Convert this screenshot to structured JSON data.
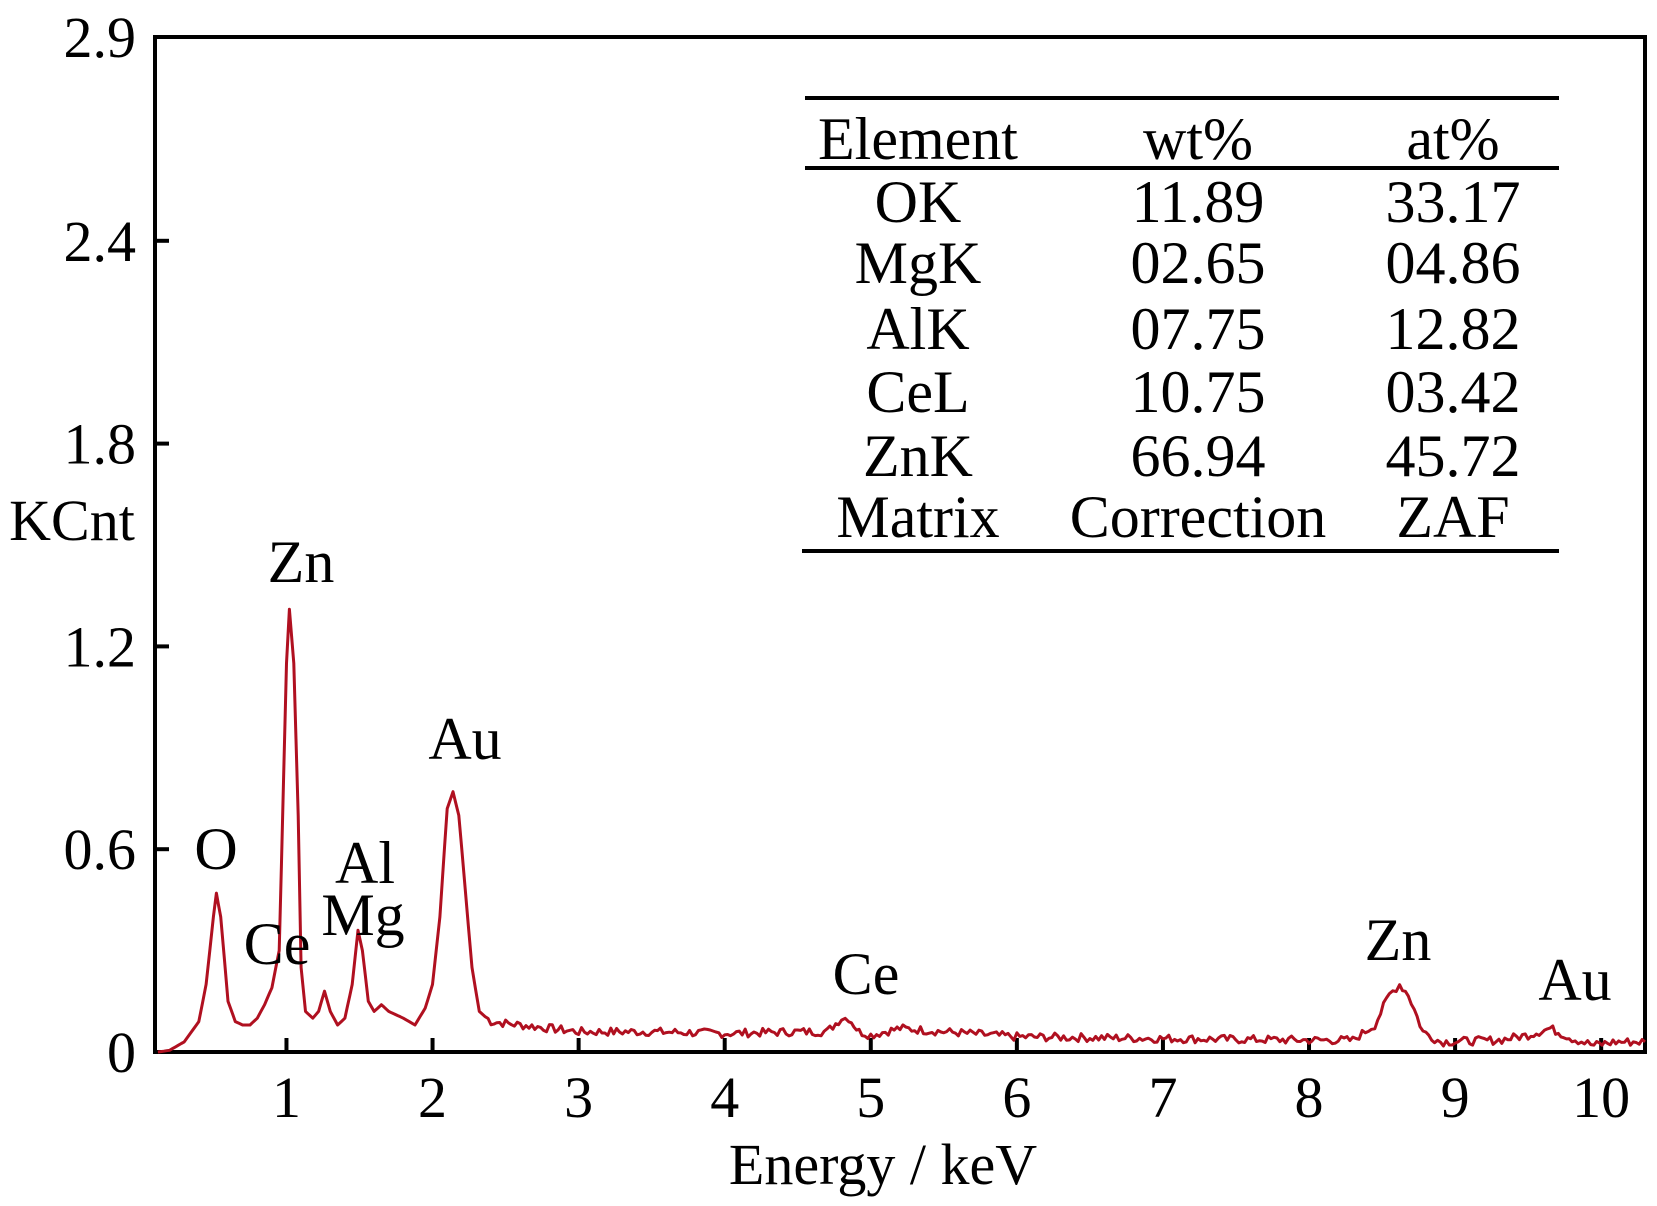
{
  "chart_data": {
    "type": "line",
    "xlabel": "Energy / keV",
    "ylabel": "KCnt",
    "xlim": [
      0.1,
      10.3
    ],
    "ylim": [
      0,
      2.9
    ],
    "xticks": [
      "1",
      "2",
      "3",
      "4",
      "5",
      "6",
      "7",
      "8",
      "9",
      "10"
    ],
    "yticks": [
      "0",
      "0.6",
      "1.2",
      "1.8",
      "2.4",
      "2.9"
    ],
    "grid": false,
    "line_color": "#b01020",
    "series": [
      {
        "x": [
          0.12,
          0.2,
          0.3,
          0.35,
          0.4,
          0.45,
          0.5,
          0.52,
          0.55,
          0.6,
          0.65,
          0.7,
          0.75,
          0.8,
          0.85,
          0.9,
          0.95,
          0.98,
          1.0,
          1.02,
          1.05,
          1.08,
          1.1,
          1.13,
          1.18,
          1.22,
          1.26,
          1.3,
          1.35,
          1.4,
          1.45,
          1.49,
          1.52,
          1.56,
          1.6,
          1.65,
          1.7,
          1.8,
          1.88,
          1.95,
          2.0,
          2.05,
          2.1,
          2.14,
          2.18,
          2.22,
          2.27,
          2.32,
          2.4,
          2.6,
          2.8,
          3.0,
          3.5,
          4.0,
          4.5,
          4.7,
          4.8,
          4.85,
          4.92,
          5.0,
          5.2,
          5.5,
          6.0,
          7.0,
          8.0,
          8.3,
          8.45,
          8.55,
          8.62,
          8.68,
          8.78,
          8.9,
          9.3,
          9.5,
          9.65,
          9.8,
          9.95,
          10.1,
          10.3
        ],
        "y": [
          0.0,
          0.005,
          0.03,
          0.06,
          0.09,
          0.2,
          0.4,
          0.47,
          0.4,
          0.15,
          0.09,
          0.08,
          0.08,
          0.1,
          0.14,
          0.19,
          0.3,
          0.8,
          1.15,
          1.31,
          1.15,
          0.7,
          0.25,
          0.12,
          0.1,
          0.12,
          0.18,
          0.12,
          0.08,
          0.1,
          0.2,
          0.36,
          0.3,
          0.15,
          0.12,
          0.14,
          0.12,
          0.1,
          0.08,
          0.13,
          0.2,
          0.4,
          0.72,
          0.77,
          0.7,
          0.5,
          0.25,
          0.12,
          0.09,
          0.08,
          0.07,
          0.06,
          0.06,
          0.055,
          0.06,
          0.06,
          0.1,
          0.1,
          0.06,
          0.05,
          0.07,
          0.06,
          0.045,
          0.04,
          0.035,
          0.035,
          0.08,
          0.17,
          0.2,
          0.17,
          0.06,
          0.03,
          0.035,
          0.05,
          0.07,
          0.04,
          0.02,
          0.03,
          0.03
        ]
      }
    ],
    "annotations": [
      {
        "text": "O",
        "x": 0.52
      },
      {
        "text": "Ce",
        "x": 0.95
      },
      {
        "text": "Zn",
        "x": 1.02
      },
      {
        "text": "Al",
        "x": 1.49
      },
      {
        "text": "Mg",
        "x": 1.25
      },
      {
        "text": "Au",
        "x": 2.14
      },
      {
        "text": "Ce",
        "x": 4.84
      },
      {
        "text": "Zn",
        "x": 8.63
      },
      {
        "text": "Au",
        "x": 9.7
      }
    ],
    "inset_table": {
      "headers": [
        "Element",
        "wt%",
        "at%"
      ],
      "rows": [
        [
          "OK",
          "11.89",
          "33.17"
        ],
        [
          "MgK",
          "02.65",
          "04.86"
        ],
        [
          "AlK",
          "07.75",
          "12.82"
        ],
        [
          "CeL",
          "10.75",
          "03.42"
        ],
        [
          "ZnK",
          "66.94",
          "45.72"
        ],
        [
          "Matrix",
          "Correction",
          "ZAF"
        ]
      ]
    }
  }
}
